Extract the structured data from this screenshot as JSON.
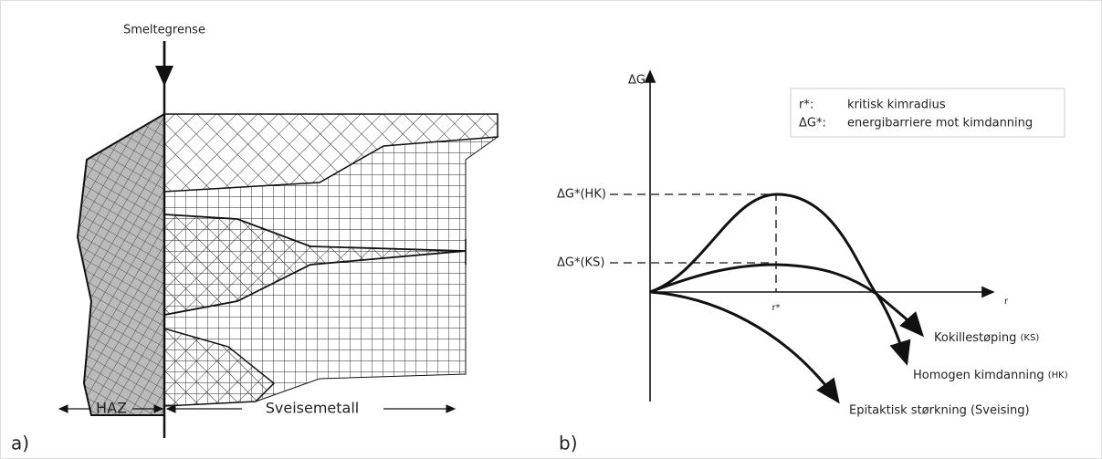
{
  "panel_a": {
    "label": "a)",
    "fusion_line": "Smeltegrense",
    "haz": "HAZ",
    "weld_metal": "Sveisemetall"
  },
  "panel_b": {
    "label": "b)",
    "y_axis": "ΔG",
    "x_axis": "r",
    "r_star": "r*",
    "legend": [
      {
        "symbol": "r*:",
        "text": "kritisk kimradius"
      },
      {
        "symbol": "ΔG*:",
        "text": "energibarriere mot kimdanning"
      }
    ],
    "levels": [
      "ΔG*(HK)",
      "ΔG*(KS)"
    ],
    "curves": [
      {
        "name": "Kokillestøping",
        "abbr": "(KS)"
      },
      {
        "name": "Homogen kimdanning",
        "abbr": "(HK)"
      },
      {
        "name": "Epitaktisk størkning (Sveising)"
      }
    ]
  }
}
